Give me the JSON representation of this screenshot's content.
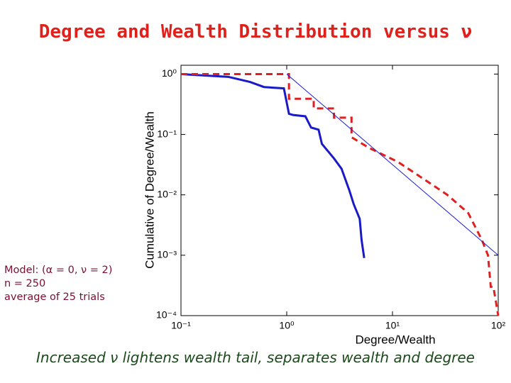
{
  "chart_data": {
    "type": "line",
    "title": "Degree and Wealth Distribution versus ν",
    "xlabel": "Degree/Wealth",
    "ylabel": "Cumulative of Degree/Wealth",
    "annotations": [
      "Model: (α = 0, ν = 2)",
      "n = 250",
      "average of 25 trials"
    ],
    "caption": "Increased ν lightens wealth tail, separates wealth and degree",
    "xscale": "log",
    "yscale": "log",
    "xlim": [
      0.1,
      100
    ],
    "ylim": [
      0.0001,
      1.4
    ],
    "xticks": [
      {
        "value": 0.1,
        "label": "10⁻¹"
      },
      {
        "value": 1,
        "label": "10⁰"
      },
      {
        "value": 10,
        "label": "10¹"
      },
      {
        "value": 100,
        "label": "10²"
      }
    ],
    "yticks": [
      {
        "value": 0.0001,
        "label": "10⁻⁴"
      },
      {
        "value": 0.001,
        "label": "10⁻³"
      },
      {
        "value": 0.01,
        "label": "10⁻²"
      },
      {
        "value": 0.1,
        "label": "10⁻¹"
      },
      {
        "value": 1,
        "label": "10⁰"
      }
    ],
    "series": [
      {
        "color": "#1a1ac8",
        "width": 3,
        "dash": "none",
        "x": [
          0.1,
          0.28,
          0.45,
          0.61,
          0.94,
          1.05,
          1.15,
          1.5,
          1.7,
          2.0,
          2.15,
          2.8,
          3.3,
          3.9,
          4.3,
          4.9,
          5.1,
          5.4
        ],
        "values": [
          1.0,
          0.9,
          0.74,
          0.61,
          0.58,
          0.22,
          0.21,
          0.2,
          0.13,
          0.12,
          0.07,
          0.04,
          0.027,
          0.012,
          0.007,
          0.004,
          0.0018,
          0.0009
        ]
      },
      {
        "color": "#e02020",
        "width": 3,
        "dash": "9 6",
        "x": [
          0.1,
          1.05,
          1.05,
          1.8,
          1.8,
          2.8,
          2.8,
          4.1,
          4.1,
          6,
          11.3,
          21,
          33,
          52,
          70,
          80,
          85,
          90,
          100
        ],
        "values": [
          1.0,
          1.0,
          0.39,
          0.39,
          0.27,
          0.27,
          0.19,
          0.19,
          0.09,
          0.06,
          0.035,
          0.017,
          0.01,
          0.005,
          0.0018,
          0.001,
          0.0003,
          0.0003,
          0.0001
        ]
      },
      {
        "color": "#2020d0",
        "width": 1,
        "dash": "none",
        "x": [
          1,
          100
        ],
        "values": [
          1,
          0.001
        ]
      }
    ]
  }
}
